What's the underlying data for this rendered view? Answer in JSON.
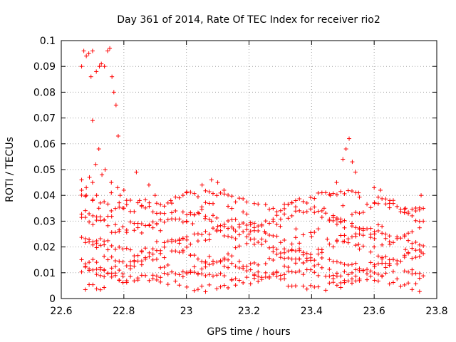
{
  "chart_data": {
    "type": "scatter",
    "title": "Day 361 of 2014, Rate Of TEC Index for receiver rio2",
    "xlabel": "GPS time / hours",
    "ylabel": "ROTI / TECUs",
    "xlim": [
      22.6,
      23.8
    ],
    "ylim": [
      0,
      0.1
    ],
    "x_ticks": [
      "22.6",
      "22.8",
      "23",
      "23.2",
      "23.4",
      "23.6",
      "23.8"
    ],
    "y_ticks": [
      "0",
      "0.01",
      "0.02",
      "0.03",
      "0.04",
      "0.05",
      "0.06",
      "0.07",
      "0.08",
      "0.09",
      "0.1"
    ],
    "grid": true,
    "marker": "+",
    "color": "#ff0000",
    "series": [
      {
        "name": "rio2",
        "x": [
          22.665,
          22.672,
          22.68,
          22.688,
          22.695,
          22.7,
          22.712,
          22.722,
          22.728,
          22.738,
          22.748,
          22.755,
          22.762,
          22.768,
          22.775,
          22.782,
          22.788,
          22.7,
          22.71,
          22.72,
          22.73,
          22.74,
          22.76,
          22.78,
          22.665,
          22.68,
          22.69,
          22.7,
          22.76,
          22.8,
          22.84,
          22.88,
          22.665,
          22.68,
          22.7,
          22.72,
          22.76,
          22.8,
          22.85,
          22.9,
          22.95,
          23.0,
          23.05,
          23.08,
          23.1,
          23.12,
          23.5,
          23.51,
          23.52,
          23.53,
          23.54,
          23.48,
          23.46,
          23.44,
          23.5,
          23.55,
          23.6,
          23.62,
          23.65,
          23.7,
          23.75,
          23.0,
          23.02,
          23.04,
          23.06,
          23.08,
          23.1,
          23.15,
          23.2,
          23.25,
          23.3,
          23.35,
          23.4,
          23.45,
          23.5,
          23.55,
          23.6,
          23.65,
          23.7,
          23.75
        ],
        "y": [
          0.09,
          0.096,
          0.094,
          0.095,
          0.086,
          0.096,
          0.088,
          0.09,
          0.091,
          0.09,
          0.096,
          0.097,
          0.086,
          0.08,
          0.075,
          0.063,
          0.04,
          0.069,
          0.052,
          0.058,
          0.048,
          0.05,
          0.045,
          0.043,
          0.046,
          0.043,
          0.047,
          0.045,
          0.041,
          0.042,
          0.049,
          0.044,
          0.042,
          0.04,
          0.038,
          0.035,
          0.034,
          0.035,
          0.038,
          0.04,
          0.038,
          0.041,
          0.044,
          0.046,
          0.045,
          0.042,
          0.054,
          0.058,
          0.062,
          0.053,
          0.049,
          0.045,
          0.04,
          0.035,
          0.036,
          0.041,
          0.043,
          0.042,
          0.038,
          0.035,
          0.04,
          0.03,
          0.029,
          0.033,
          0.031,
          0.03,
          0.028,
          0.027,
          0.025,
          0.026,
          0.028,
          0.027,
          0.024,
          0.023,
          0.022,
          0.021,
          0.02,
          0.021,
          0.019,
          0.018
        ],
        "note": "Dense bands of additional points lie between 0.003 and 0.042 TECUs across the whole time range (approx. 22.66 to 23.76 h)."
      }
    ]
  }
}
